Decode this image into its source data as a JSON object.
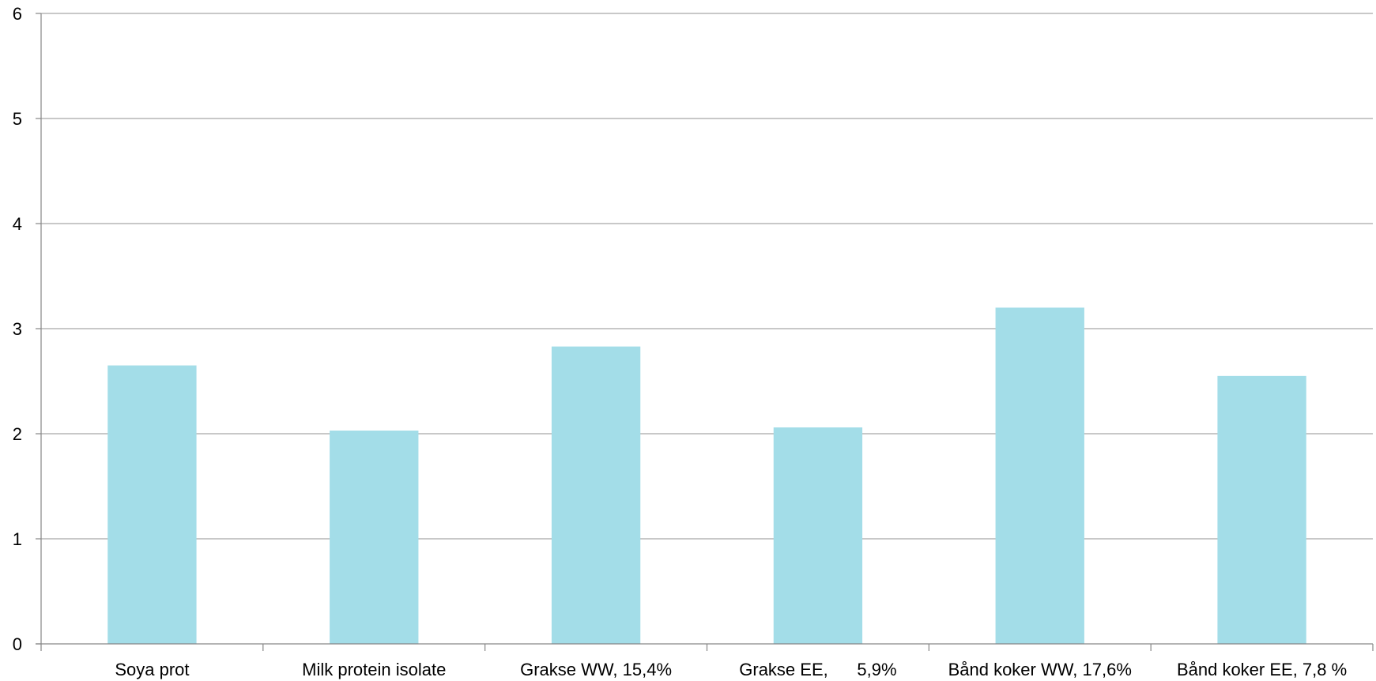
{
  "chart_data": {
    "type": "bar",
    "title": "",
    "xlabel": "",
    "ylabel": "",
    "ylim": [
      0,
      6
    ],
    "yticks": [
      0,
      1,
      2,
      3,
      4,
      5,
      6
    ],
    "ytick_labels": [
      "0",
      "1",
      "2",
      "3",
      "4",
      "5",
      "6"
    ],
    "grid": true,
    "legend": "none",
    "categories": [
      "Soya prot",
      "Milk protein isolate",
      "Grakse WW, 15,4%",
      "Grakse EE,      5,9%",
      "Bånd koker WW, 17,6%",
      "Bånd koker EE, 7,8 %"
    ],
    "values": [
      2.65,
      2.03,
      2.83,
      2.06,
      3.2,
      2.55
    ],
    "colors": {
      "bar": "#a3dde8",
      "grid": "#a6a6a6",
      "axis": "#868686"
    }
  }
}
